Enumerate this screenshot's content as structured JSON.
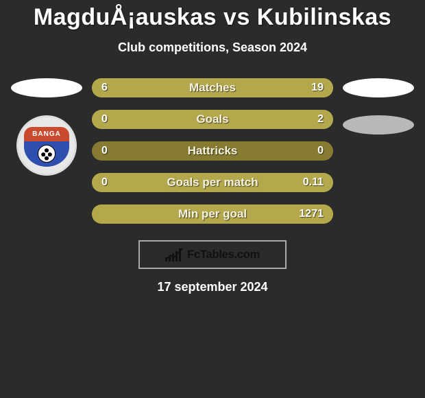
{
  "title": "MagduÅ¡auskas vs Kubilinskas",
  "subtitle": "Club competitions, Season 2024",
  "date_line": "17 september 2024",
  "brand": {
    "text": "FcTables.com"
  },
  "left_club_badge": {
    "label": "BANGA",
    "top_color": "#c94a2f",
    "bottom_color": "#2f4fb0"
  },
  "colors": {
    "bar_bg": "#877b32",
    "bar_left_fill": "#b4a84c",
    "bar_right_fill": "#b4a84c",
    "bar_full_fill": "#b4a84c"
  },
  "stats": [
    {
      "label": "Matches",
      "left_val": "6",
      "right_val": "19",
      "left_pct": 24,
      "right_pct": 76
    },
    {
      "label": "Goals",
      "left_val": "0",
      "right_val": "2",
      "left_pct": 0,
      "right_pct": 100
    },
    {
      "label": "Hattricks",
      "left_val": "0",
      "right_val": "0",
      "left_pct": 0,
      "right_pct": 0
    },
    {
      "label": "Goals per match",
      "left_val": "0",
      "right_val": "0.11",
      "left_pct": 0,
      "right_pct": 100
    },
    {
      "label": "Min per goal",
      "left_val": "",
      "right_val": "1271",
      "left_pct": 0,
      "right_pct": 100
    }
  ]
}
